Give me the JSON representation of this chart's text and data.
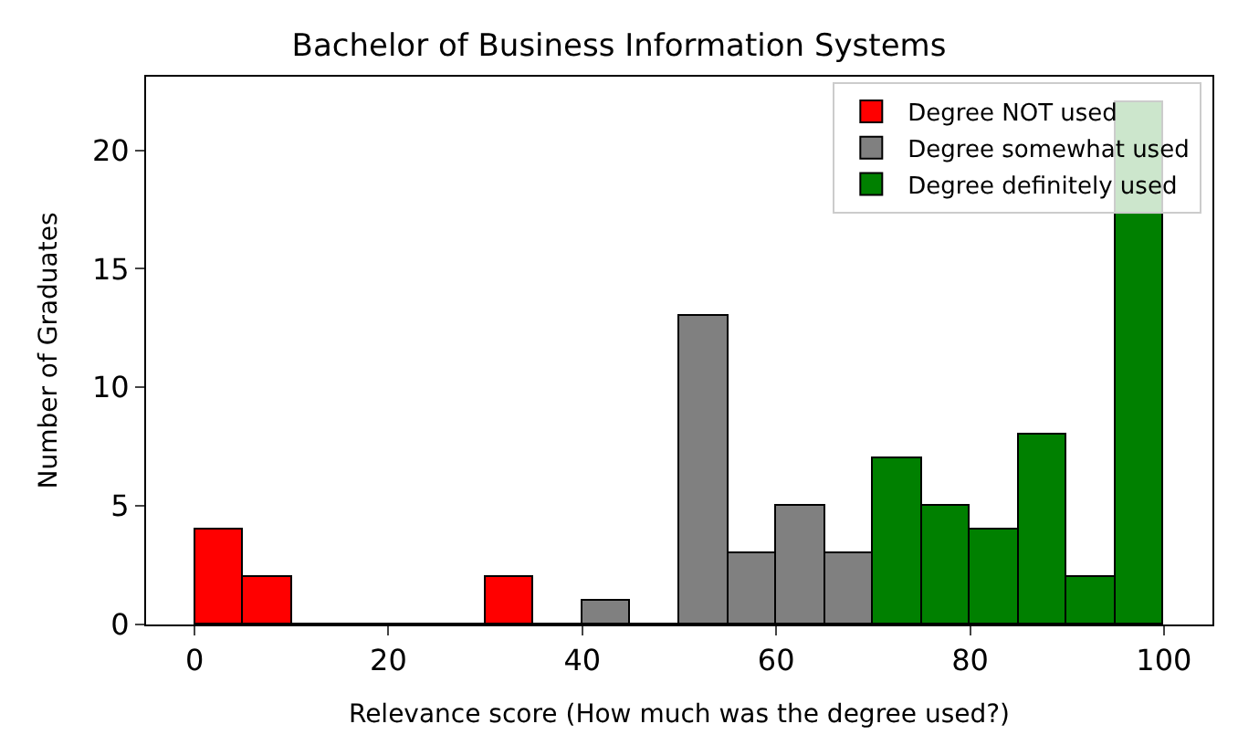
{
  "chart_data": {
    "type": "histogram",
    "title": "Bachelor of Business Information Systems",
    "xlabel": "Relevance score (How much was the degree used?)",
    "ylabel": "Number of Graduates",
    "bins": [
      0,
      5,
      10,
      15,
      20,
      25,
      30,
      35,
      40,
      45,
      50,
      55,
      60,
      65,
      70,
      75,
      80,
      85,
      90,
      95,
      100
    ],
    "series": [
      {
        "name": "Degree NOT used",
        "color": "#ff0000",
        "values": [
          4,
          2,
          0,
          0,
          0,
          0,
          2,
          null,
          null,
          null,
          null,
          null,
          null,
          null,
          null,
          null,
          null,
          null,
          null,
          null
        ]
      },
      {
        "name": "Degree somewhat used",
        "color": "#808080",
        "values": [
          null,
          null,
          null,
          null,
          null,
          null,
          null,
          0,
          1,
          0,
          13,
          3,
          5,
          3,
          null,
          null,
          null,
          null,
          null,
          null
        ]
      },
      {
        "name": "Degree definitely used",
        "color": "#008000",
        "values": [
          null,
          null,
          null,
          null,
          null,
          null,
          null,
          null,
          null,
          null,
          null,
          null,
          null,
          null,
          7,
          5,
          4,
          8,
          2,
          22
        ]
      }
    ],
    "xlim": [
      -5,
      105
    ],
    "ylim": [
      0,
      23.1
    ],
    "xticks": [
      0,
      20,
      40,
      60,
      80,
      100
    ],
    "yticks": [
      0,
      5,
      10,
      15,
      20
    ],
    "legend": "top right"
  }
}
